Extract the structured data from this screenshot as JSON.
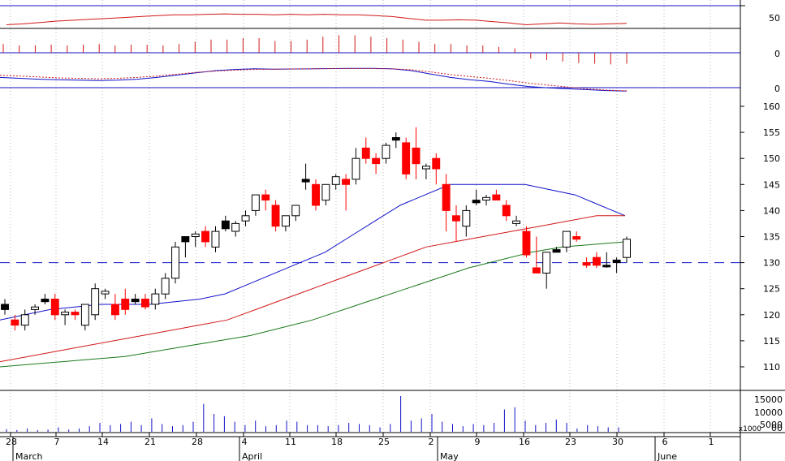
{
  "chart_data": [
    {
      "type": "line",
      "panel": "oscillator",
      "title": "",
      "y_tick_labels": [
        "50"
      ],
      "series": [
        {
          "color": "#d01818",
          "values": [
            38,
            40,
            43,
            46,
            48,
            50,
            52,
            54,
            56,
            58,
            60,
            60,
            61,
            62,
            61,
            61,
            60,
            61,
            60,
            61,
            60,
            60,
            58,
            56,
            52,
            48,
            48,
            49,
            48,
            45,
            42,
            38,
            40,
            42,
            40,
            39,
            40,
            41
          ]
        }
      ]
    },
    {
      "type": "bar",
      "panel": "histogram",
      "title": "",
      "y_tick_labels": [
        "0"
      ],
      "series": [
        {
          "color": "#d01818",
          "values": [
            1.2,
            1.0,
            1.0,
            1.1,
            1.0,
            1.1,
            1.2,
            1.0,
            1.1,
            1.1,
            1.0,
            1.2,
            1.5,
            1.8,
            1.8,
            2.0,
            2.0,
            1.6,
            1.6,
            1.8,
            2.2,
            2.4,
            2.4,
            2.2,
            2.0,
            1.8,
            1.5,
            1.2,
            1.2,
            1.0,
            1.0,
            0.8,
            0.6,
            -0.8,
            -1.0,
            -1.2,
            -1.4,
            -1.5,
            -1.6,
            -1.5
          ]
        }
      ]
    },
    {
      "type": "line",
      "panel": "macd",
      "title": "",
      "y_tick_labels": [
        "0"
      ],
      "series": [
        {
          "color": "#1010c8",
          "values": [
            3.0,
            2.6,
            2.2,
            2.0,
            1.8,
            1.6,
            1.8,
            2.2,
            3.0,
            4.0,
            5.0,
            6.0,
            6.5,
            6.8,
            6.6,
            6.7,
            6.8,
            6.9,
            7.0,
            7.0,
            6.8,
            6.0,
            4.5,
            3.0,
            2.0,
            1.2,
            0.0,
            -1.0,
            -1.6,
            -2.0,
            -2.4,
            -2.8,
            -3.0
          ]
        },
        {
          "color": "#d01818",
          "dashed": true,
          "values": [
            4.0,
            3.6,
            3.2,
            2.8,
            2.6,
            2.4,
            2.6,
            3.0,
            3.6,
            4.4,
            5.2,
            5.8,
            6.2,
            6.5,
            6.6,
            6.7,
            6.8,
            6.9,
            6.9,
            6.9,
            6.8,
            6.4,
            5.4,
            4.3,
            3.4,
            2.6,
            1.6,
            0.5,
            -0.4,
            -1.2,
            -2.0,
            -2.6,
            -2.9
          ]
        }
      ]
    },
    {
      "type": "candlestick",
      "panel": "price",
      "title": "",
      "y_ticks": [
        110,
        115,
        120,
        125,
        130,
        135,
        140,
        145,
        150,
        155,
        160
      ],
      "ylim": [
        106,
        162
      ],
      "reference_line": 130,
      "x_tick_labels": [
        "28",
        "7",
        "14",
        "21",
        "28",
        "4",
        "11",
        "18",
        "25",
        "2",
        "9",
        "16",
        "23",
        "30",
        "6",
        "1"
      ],
      "month_labels": [
        "March",
        "April",
        "May",
        "June"
      ],
      "candles": [
        {
          "o": 122,
          "h": 123,
          "l": 120,
          "c": 121,
          "color": "black"
        },
        {
          "o": 119,
          "h": 120,
          "l": 117,
          "c": 118,
          "color": "red"
        },
        {
          "o": 118,
          "h": 121,
          "l": 117,
          "c": 120,
          "color": "white"
        },
        {
          "o": 121,
          "h": 122,
          "l": 120,
          "c": 121.5,
          "color": "white"
        },
        {
          "o": 123,
          "h": 124,
          "l": 122,
          "c": 122.5,
          "color": "black"
        },
        {
          "o": 123,
          "h": 124,
          "l": 119,
          "c": 120,
          "color": "red"
        },
        {
          "o": 120,
          "h": 121,
          "l": 118,
          "c": 120.5,
          "color": "white"
        },
        {
          "o": 120,
          "h": 121,
          "l": 119,
          "c": 120.5,
          "color": "red"
        },
        {
          "o": 118,
          "h": 122,
          "l": 117,
          "c": 122,
          "color": "white"
        },
        {
          "o": 120,
          "h": 126,
          "l": 119,
          "c": 125,
          "color": "white"
        },
        {
          "o": 124,
          "h": 125,
          "l": 123,
          "c": 124.5,
          "color": "white"
        },
        {
          "o": 122,
          "h": 124,
          "l": 119,
          "c": 120,
          "color": "red"
        },
        {
          "o": 123,
          "h": 125,
          "l": 120,
          "c": 121,
          "color": "red"
        },
        {
          "o": 123,
          "h": 124,
          "l": 122,
          "c": 122.5,
          "color": "black"
        },
        {
          "o": 123,
          "h": 124,
          "l": 121,
          "c": 121.5,
          "color": "red"
        },
        {
          "o": 122,
          "h": 125,
          "l": 121,
          "c": 124,
          "color": "white"
        },
        {
          "o": 124,
          "h": 128,
          "l": 123,
          "c": 127,
          "color": "white"
        },
        {
          "o": 127,
          "h": 134,
          "l": 126,
          "c": 133,
          "color": "white"
        },
        {
          "o": 134,
          "h": 135,
          "l": 131,
          "c": 135,
          "color": "black"
        },
        {
          "o": 135,
          "h": 136,
          "l": 133,
          "c": 135.5,
          "color": "white"
        },
        {
          "o": 136,
          "h": 137,
          "l": 133,
          "c": 134,
          "color": "red"
        },
        {
          "o": 133,
          "h": 137,
          "l": 132,
          "c": 136,
          "color": "white"
        },
        {
          "o": 138,
          "h": 139,
          "l": 136,
          "c": 136.5,
          "color": "black"
        },
        {
          "o": 136,
          "h": 138,
          "l": 135,
          "c": 137.5,
          "color": "white"
        },
        {
          "o": 138,
          "h": 140,
          "l": 137,
          "c": 139,
          "color": "white"
        },
        {
          "o": 140,
          "h": 143,
          "l": 139,
          "c": 143,
          "color": "white"
        },
        {
          "o": 143,
          "h": 144,
          "l": 140,
          "c": 142,
          "color": "red"
        },
        {
          "o": 141,
          "h": 142,
          "l": 136,
          "c": 137,
          "color": "red"
        },
        {
          "o": 137,
          "h": 139,
          "l": 136,
          "c": 139,
          "color": "white"
        },
        {
          "o": 139,
          "h": 141,
          "l": 138,
          "c": 141,
          "color": "white"
        },
        {
          "o": 146,
          "h": 149,
          "l": 144,
          "c": 145.5,
          "color": "black"
        },
        {
          "o": 145,
          "h": 146,
          "l": 140,
          "c": 141,
          "color": "red"
        },
        {
          "o": 142,
          "h": 145,
          "l": 141,
          "c": 145,
          "color": "white"
        },
        {
          "o": 145,
          "h": 147,
          "l": 144,
          "c": 146.5,
          "color": "white"
        },
        {
          "o": 146,
          "h": 147,
          "l": 140,
          "c": 145,
          "color": "red"
        },
        {
          "o": 146,
          "h": 152,
          "l": 145,
          "c": 150,
          "color": "white"
        },
        {
          "o": 152,
          "h": 154,
          "l": 149,
          "c": 150,
          "color": "red"
        },
        {
          "o": 150,
          "h": 151,
          "l": 147,
          "c": 149,
          "color": "red"
        },
        {
          "o": 150,
          "h": 153,
          "l": 149,
          "c": 152.5,
          "color": "white"
        },
        {
          "o": 154,
          "h": 155,
          "l": 152,
          "c": 153.5,
          "color": "black"
        },
        {
          "o": 153,
          "h": 154,
          "l": 146,
          "c": 147,
          "color": "red"
        },
        {
          "o": 152,
          "h": 156,
          "l": 146,
          "c": 149,
          "color": "red"
        },
        {
          "o": 148,
          "h": 149,
          "l": 146,
          "c": 148.5,
          "color": "white"
        },
        {
          "o": 150,
          "h": 151,
          "l": 145,
          "c": 148,
          "color": "red"
        },
        {
          "o": 145,
          "h": 147,
          "l": 136,
          "c": 140,
          "color": "red"
        },
        {
          "o": 139,
          "h": 141,
          "l": 134,
          "c": 138,
          "color": "red"
        },
        {
          "o": 137,
          "h": 141,
          "l": 135,
          "c": 140,
          "color": "white"
        },
        {
          "o": 142,
          "h": 144,
          "l": 141,
          "c": 141.5,
          "color": "black"
        },
        {
          "o": 142,
          "h": 143,
          "l": 141,
          "c": 142.5,
          "color": "white"
        },
        {
          "o": 143,
          "h": 144,
          "l": 142,
          "c": 142,
          "color": "red"
        },
        {
          "o": 141,
          "h": 142,
          "l": 138,
          "c": 139,
          "color": "red"
        },
        {
          "o": 138,
          "h": 139,
          "l": 137,
          "c": 137.5,
          "color": "white"
        },
        {
          "o": 136,
          "h": 137,
          "l": 131,
          "c": 131.5,
          "color": "red"
        },
        {
          "o": 129,
          "h": 135,
          "l": 128,
          "c": 128,
          "color": "red"
        },
        {
          "o": 128,
          "h": 132,
          "l": 125,
          "c": 132,
          "color": "white"
        },
        {
          "o": 132,
          "h": 133,
          "l": 132,
          "c": 132.5,
          "color": "black"
        },
        {
          "o": 133,
          "h": 136,
          "l": 132,
          "c": 136,
          "color": "white"
        },
        {
          "o": 135,
          "h": 136,
          "l": 134,
          "c": 134.5,
          "color": "red"
        },
        {
          "o": 130,
          "h": 131,
          "l": 129,
          "c": 129.5,
          "color": "red"
        },
        {
          "o": 131,
          "h": 132,
          "l": 129,
          "c": 129.5,
          "color": "red"
        },
        {
          "o": 129.5,
          "h": 132,
          "l": 129,
          "c": 129.5,
          "color": "black"
        },
        {
          "o": 130,
          "h": 131,
          "l": 128,
          "c": 130.5,
          "color": "black"
        },
        {
          "o": 131,
          "h": 135,
          "l": 130,
          "c": 134.5,
          "color": "white"
        }
      ],
      "series": [
        {
          "color": "#1010c8",
          "values": [
            119,
            120,
            121,
            121.5,
            122,
            122,
            122,
            122.5,
            123,
            124,
            126,
            128,
            130,
            132,
            135,
            138,
            141,
            143,
            145,
            145,
            145,
            145,
            144,
            143,
            141,
            139
          ]
        },
        {
          "color": "#d01818",
          "values": [
            111,
            112,
            113,
            114,
            115,
            116,
            117,
            118,
            119,
            121,
            123,
            125,
            127,
            129,
            131,
            133,
            134,
            135,
            136,
            137,
            138,
            139,
            139
          ]
        },
        {
          "color": "#1a7a1a",
          "values": [
            110,
            110.5,
            111,
            111.5,
            112,
            113,
            114,
            115,
            116,
            117.5,
            119,
            121,
            123,
            125,
            127,
            129,
            130.5,
            132,
            133,
            133.5,
            134
          ]
        }
      ]
    },
    {
      "type": "bar",
      "panel": "volume",
      "title": "",
      "y_tick_labels": [
        "15000",
        "10000",
        "5000"
      ],
      "unit_label": "x1000",
      "zero_label": "00",
      "series": [
        {
          "color": "#1010c8",
          "values": [
            1200,
            800,
            1500,
            800,
            1000,
            2000,
            1000,
            1500,
            2500,
            4000,
            3000,
            3500,
            4500,
            3000,
            6000,
            3500,
            2500,
            3000,
            4500,
            12500,
            8000,
            7000,
            4500,
            3000,
            5000,
            2500,
            3000,
            5000,
            4500,
            3000,
            3000,
            2500,
            3000,
            4000,
            3500,
            3000,
            2000,
            3500,
            16000,
            5000,
            6000,
            8000,
            4500,
            3500,
            2500,
            3500,
            3000,
            4000,
            10000,
            11000,
            5000,
            3000,
            4000,
            5500,
            4000,
            1500,
            3000,
            2500,
            2000,
            2000
          ]
        }
      ]
    }
  ]
}
